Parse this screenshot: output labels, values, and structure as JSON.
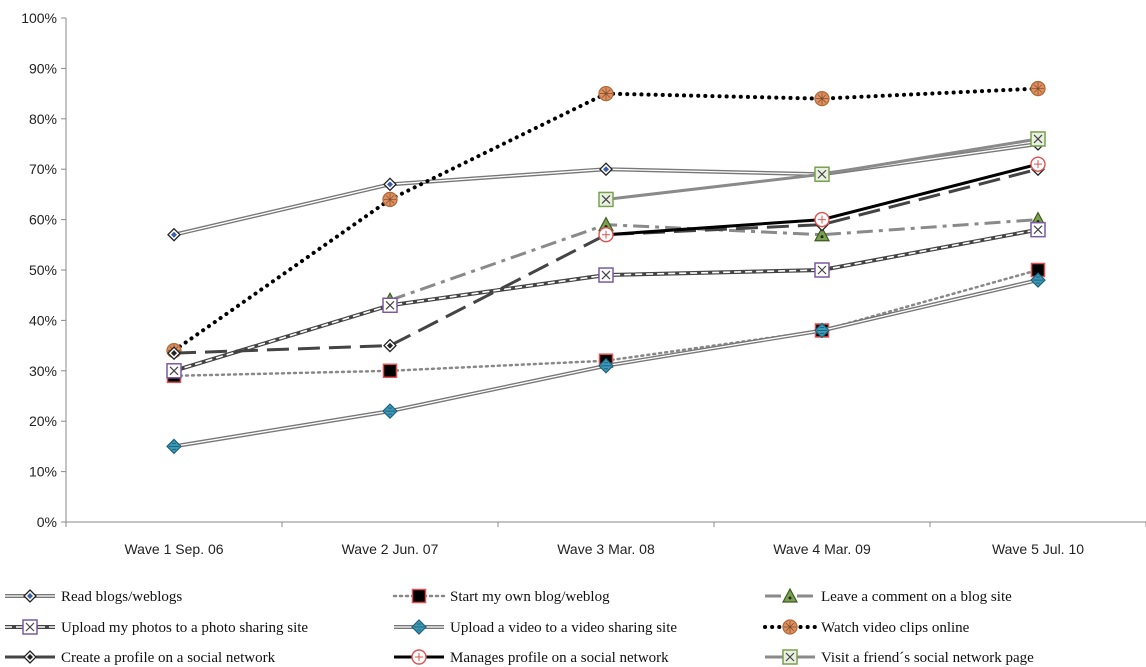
{
  "chart_data": {
    "type": "line",
    "title": "",
    "xlabel": "",
    "ylabel": "",
    "categories": [
      "Wave 1 Sep. 06",
      "Wave 2 Jun. 07",
      "Wave 3 Mar. 08",
      "Wave 4 Mar. 09",
      "Wave 5 Jul. 10"
    ],
    "ylim": [
      0,
      100
    ],
    "yticks": [
      "0%",
      "10%",
      "20%",
      "30%",
      "40%",
      "50%",
      "60%",
      "70%",
      "80%",
      "90%",
      "100%"
    ],
    "grid": false,
    "legend_position": "bottom",
    "series": [
      {
        "name": "Read blogs/weblogs",
        "values": [
          57,
          67,
          70,
          69,
          75
        ],
        "color": "#777777",
        "line": "double",
        "marker": "diamond",
        "marker_fill": "#3a5fa8"
      },
      {
        "name": "Start my own blog/weblog",
        "values": [
          29,
          30,
          32,
          38,
          50
        ],
        "color": "#888888",
        "line": "dotted",
        "marker": "square",
        "marker_fill": "#000000",
        "marker_stroke": "#e05050"
      },
      {
        "name": "Leave a comment on a blog site",
        "values": [
          null,
          44,
          59,
          57,
          60
        ],
        "color": "#8a8a8a",
        "line": "dashdot",
        "marker": "triangle",
        "marker_fill": "#7aa050"
      },
      {
        "name": "Upload my photos to a photo sharing site",
        "values": [
          30,
          43,
          49,
          50,
          58
        ],
        "color": "#444444",
        "line": "dashed",
        "marker": "square-x",
        "marker_fill": "#ffffff",
        "marker_stroke": "#7a5aa0"
      },
      {
        "name": "Upload a video to a video sharing site",
        "values": [
          15,
          22,
          31,
          38,
          48
        ],
        "color": "#777777",
        "line": "double",
        "marker": "diamond-stripe",
        "marker_fill": "#3a9ab8"
      },
      {
        "name": "Watch video clips online",
        "values": [
          34,
          64,
          85,
          84,
          86
        ],
        "color": "#000000",
        "line": "dotted-bold",
        "marker": "circle-hatch",
        "marker_fill": "#e09060"
      },
      {
        "name": "Create a profile on a social network",
        "values": [
          33.5,
          35,
          57,
          59,
          70
        ],
        "color": "#444444",
        "line": "longdash",
        "marker": "diamond",
        "marker_fill": "#ffffff",
        "marker_stroke": "#3a5fa8"
      },
      {
        "name": "Manages profile on a social network",
        "values": [
          null,
          null,
          57,
          60,
          71
        ],
        "color": "#000000",
        "line": "solid",
        "marker": "circle-cross",
        "marker_fill": "#ffffff",
        "marker_stroke": "#e05050"
      },
      {
        "name": "Visit a friend´s social network page",
        "values": [
          null,
          null,
          64,
          69,
          76
        ],
        "color": "#8a8a8a",
        "line": "solid",
        "marker": "square-x",
        "marker_fill": "#e8f0e0",
        "marker_stroke": "#7aa050"
      }
    ]
  }
}
